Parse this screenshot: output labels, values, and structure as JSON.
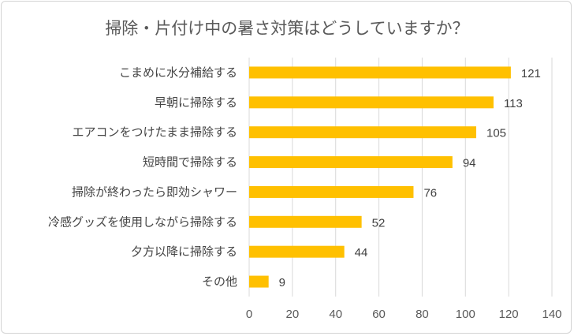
{
  "chart_data": {
    "type": "bar",
    "orientation": "horizontal",
    "title": "掃除・片付け中の暑さ対策はどうしていますか？",
    "categories": [
      "こまめに水分補給する",
      "早朝に掃除する",
      "エアコンをつけたまま掃除する",
      "短時間で掃除する",
      "掃除が終わったら即効シャワー",
      "冷感グッズを使用しながら掃除する",
      "夕方以降に掃除する",
      "その他"
    ],
    "values": [
      121,
      113,
      105,
      94,
      76,
      52,
      44,
      9
    ],
    "xlim": [
      0,
      140
    ],
    "xticks": [
      0,
      20,
      40,
      60,
      80,
      100,
      120,
      140
    ],
    "grid": true,
    "bar_color": "#FFC000",
    "data_labels": true
  }
}
